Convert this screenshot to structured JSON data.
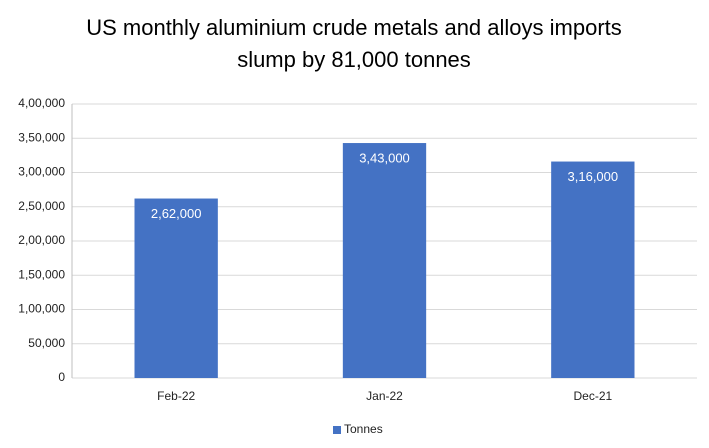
{
  "chart_data": {
    "type": "bar",
    "title": "US monthly aluminium crude metals and alloys imports slump by 81,000 tonnes",
    "categories": [
      "Feb-22",
      "Jan-22",
      "Dec-21"
    ],
    "series": [
      {
        "name": "Tonnes",
        "color": "#4472c4",
        "values": [
          262000,
          343000,
          316000
        ],
        "value_labels": [
          "2,62,000",
          "3,43,000",
          "3,16,000"
        ]
      }
    ],
    "ylim": [
      0,
      400000
    ],
    "yticks": [
      0,
      {
        "value": 50000,
        "label": "50,000"
      },
      {
        "value": 100000,
        "label": "1,00,000"
      },
      {
        "value": 150000,
        "label": "1,50,000"
      },
      {
        "value": 200000,
        "label": "2,00,000"
      },
      {
        "value": 250000,
        "label": "2,50,000"
      },
      {
        "value": 300000,
        "label": "3,00,000"
      },
      {
        "value": 350000,
        "label": "3,50,000"
      },
      {
        "value": 400000,
        "label": "4,00,000"
      }
    ],
    "grid": true,
    "legend": "bottom"
  }
}
